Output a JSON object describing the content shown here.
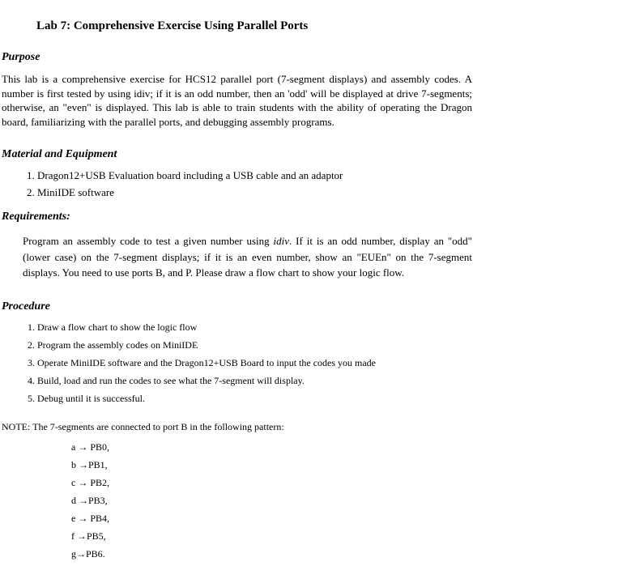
{
  "title": "Lab 7: Comprehensive Exercise Using Parallel Ports",
  "sections": {
    "purpose": {
      "header": "Purpose",
      "text": "This lab is a comprehensive exercise for HCS12 parallel port (7-segment displays) and assembly codes. A number is first tested by using idiv; if it is an odd number, then an 'odd' will be displayed at drive 7-segments; otherwise, an \"even\" is displayed. This lab is able to train students with the ability of operating the Dragon board, familiarizing with the parallel ports, and debugging assembly programs."
    },
    "material": {
      "header": "Material and Equipment",
      "items": [
        "Dragon12+USB Evaluation board including a USB cable and an adaptor",
        "MiniIDE software"
      ]
    },
    "requirements": {
      "header": "Requirements:",
      "text_before_italic": "Program an assembly code to test a given number using ",
      "italic_word": "idiv",
      "text_after_italic": ". If it is an odd number, display an \"odd\" (lower case) on the 7-segment displays; if it is an even number, show an \"EUEn\" on the 7-segment displays.  You need to use ports B, and P. Please draw a flow chart to show your logic flow."
    },
    "procedure": {
      "header": "Procedure",
      "items": [
        "Draw a flow chart to show the logic flow",
        "Program the assembly codes on MiniIDE",
        "Operate MiniIDE software and the Dragon12+USB Board to input the codes you made",
        "Build, load and run the codes to see what the 7-segment will display.",
        "Debug until it is successful."
      ]
    },
    "note": {
      "text": "NOTE: The 7-segments are connected to port B in the following pattern:",
      "pins": [
        "a → PB0,",
        "b →PB1,",
        "c → PB2,",
        "d →PB3,",
        "e → PB4,",
        "f →PB5,",
        "g→PB6."
      ]
    }
  }
}
